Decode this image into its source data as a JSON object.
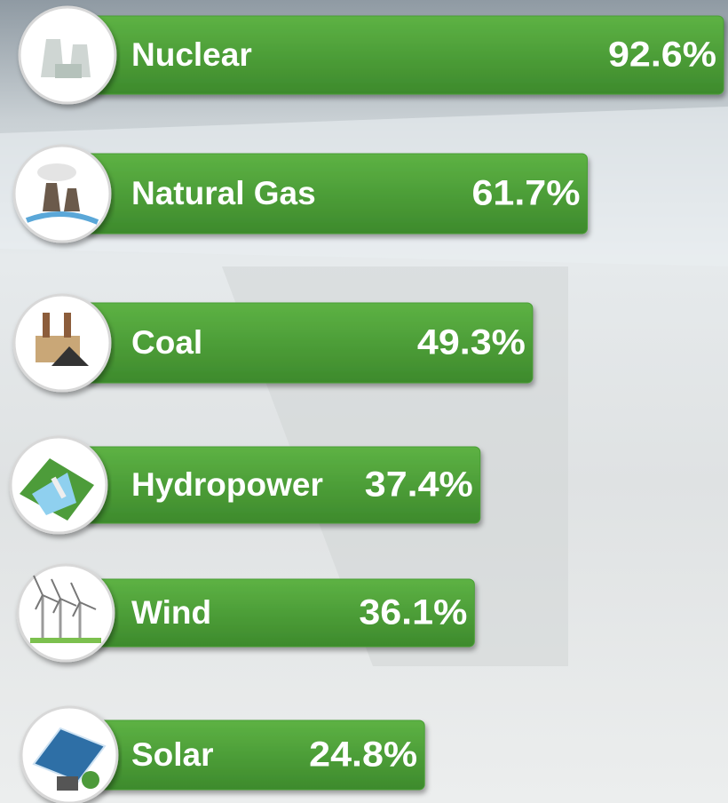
{
  "chart_data": {
    "type": "bar",
    "orientation": "horizontal",
    "categories": [
      "Nuclear",
      "Natural Gas",
      "Coal",
      "Hydropower",
      "Wind",
      "Solar"
    ],
    "values": [
      92.6,
      61.7,
      49.3,
      37.4,
      36.1,
      24.8
    ],
    "value_labels": [
      "92.6%",
      "61.7%",
      "49.3%",
      "37.4%",
      "36.1%",
      "24.8%"
    ],
    "color": "#4a9e36"
  }
}
